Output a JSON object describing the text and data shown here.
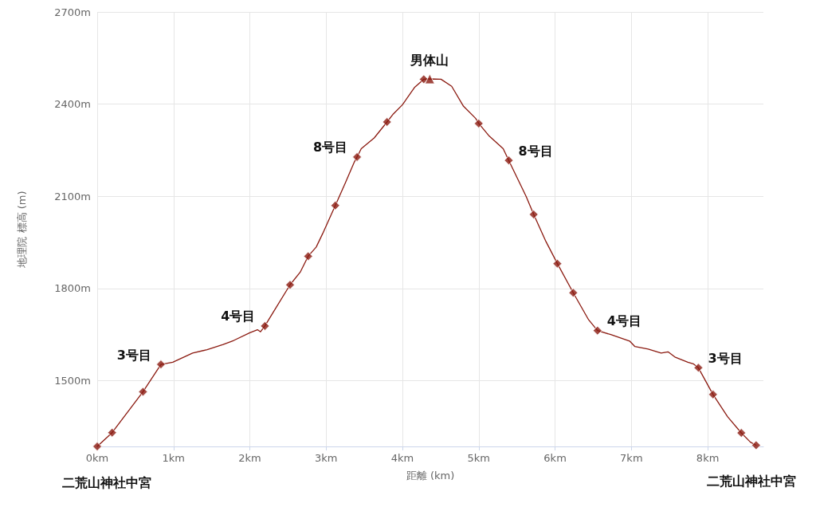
{
  "chart_data": {
    "type": "line",
    "xlabel": "距離 (km)",
    "ylabel": "地理院 標高 (m)",
    "xlim": [
      0,
      8.73
    ],
    "ylim": [
      1286,
      2700
    ],
    "xticks": [
      {
        "value": 0,
        "label": "0km"
      },
      {
        "value": 1,
        "label": "1km"
      },
      {
        "value": 2,
        "label": "2km"
      },
      {
        "value": 3,
        "label": "3km"
      },
      {
        "value": 4,
        "label": "4km"
      },
      {
        "value": 5,
        "label": "5km"
      },
      {
        "value": 6,
        "label": "6km"
      },
      {
        "value": 7,
        "label": "7km"
      },
      {
        "value": 8,
        "label": "8km"
      }
    ],
    "yticks": [
      {
        "value": 1500,
        "label": "1500m"
      },
      {
        "value": 1800,
        "label": "1800m"
      },
      {
        "value": 2100,
        "label": "2100m"
      },
      {
        "value": 2400,
        "label": "2400m"
      },
      {
        "value": 2700,
        "label": "2700m"
      }
    ],
    "grid": true,
    "series": [
      {
        "color": "#8b1a10",
        "marker": "none",
        "x": [
          0,
          0.195,
          0.6,
          0.835,
          0.99,
          1.25,
          1.44,
          1.65,
          1.79,
          2.0,
          2.1,
          2.14,
          2.197,
          2.31,
          2.527,
          2.66,
          2.764,
          2.87,
          2.955,
          3.12,
          3.25,
          3.37,
          3.405,
          3.46,
          3.63,
          3.798,
          3.88,
          4.0,
          4.157,
          4.279,
          4.358,
          4.505,
          4.645,
          4.8,
          4.958,
          5.0,
          5.13,
          5.32,
          5.393,
          5.62,
          5.72,
          5.88,
          6.03,
          6.238,
          6.44,
          6.556,
          6.73,
          6.977,
          7.046,
          7.22,
          7.39,
          7.48,
          7.57,
          7.74,
          7.81,
          7.878,
          8.07,
          8.26,
          8.44,
          8.56,
          8.634
        ],
        "values": [
          1286,
          1331,
          1464,
          1553,
          1560,
          1590,
          1601,
          1618,
          1631,
          1656,
          1666,
          1659,
          1678,
          1724,
          1812,
          1853,
          1905,
          1935,
          1979,
          2070,
          2143,
          2212,
          2228,
          2255,
          2290,
          2342,
          2368,
          2398,
          2454,
          2481,
          2482,
          2481,
          2458,
          2393,
          2354,
          2337,
          2298,
          2255,
          2217,
          2100,
          2041,
          1953,
          1881,
          1786,
          1698,
          1663,
          1650,
          1629,
          1611,
          1603,
          1590,
          1594,
          1577,
          1560,
          1555,
          1542,
          1455,
          1383,
          1330,
          1300,
          1290
        ]
      },
      {
        "type": "scatter",
        "color": "#8b1a10",
        "marker": "diamond",
        "x": [
          0,
          0.195,
          0.6,
          0.835,
          2.197,
          2.527,
          2.764,
          3.12,
          3.405,
          3.798,
          4.279,
          5.0,
          5.393,
          5.72,
          6.03,
          6.238,
          6.556,
          7.878,
          8.07,
          8.44,
          8.634
        ],
        "values": [
          1286,
          1331,
          1464,
          1553,
          1678,
          1812,
          1905,
          2070,
          2228,
          2342,
          2481,
          2337,
          2217,
          2041,
          1881,
          1786,
          1663,
          1542,
          1455,
          1330,
          1290
        ]
      },
      {
        "type": "scatter",
        "color": "#8b1a10",
        "marker": "triangle",
        "x": [
          4.358
        ],
        "values": [
          2482
        ]
      }
    ],
    "annotations": [
      {
        "text": "二荒山神社中宮",
        "x": 0,
        "y": 1286
      },
      {
        "text": "3号目",
        "x": 0.835,
        "y": 1553
      },
      {
        "text": "4号目",
        "x": 2.197,
        "y": 1678
      },
      {
        "text": "8号目",
        "x": 3.405,
        "y": 2228
      },
      {
        "text": "男体山",
        "x": 4.358,
        "y": 2482
      },
      {
        "text": "8号目",
        "x": 5.393,
        "y": 2217
      },
      {
        "text": "4号目",
        "x": 6.556,
        "y": 1663
      },
      {
        "text": "3号目",
        "x": 7.878,
        "y": 1542
      },
      {
        "text": "二荒山神社中宮",
        "x": 8.634,
        "y": 1290
      }
    ]
  }
}
